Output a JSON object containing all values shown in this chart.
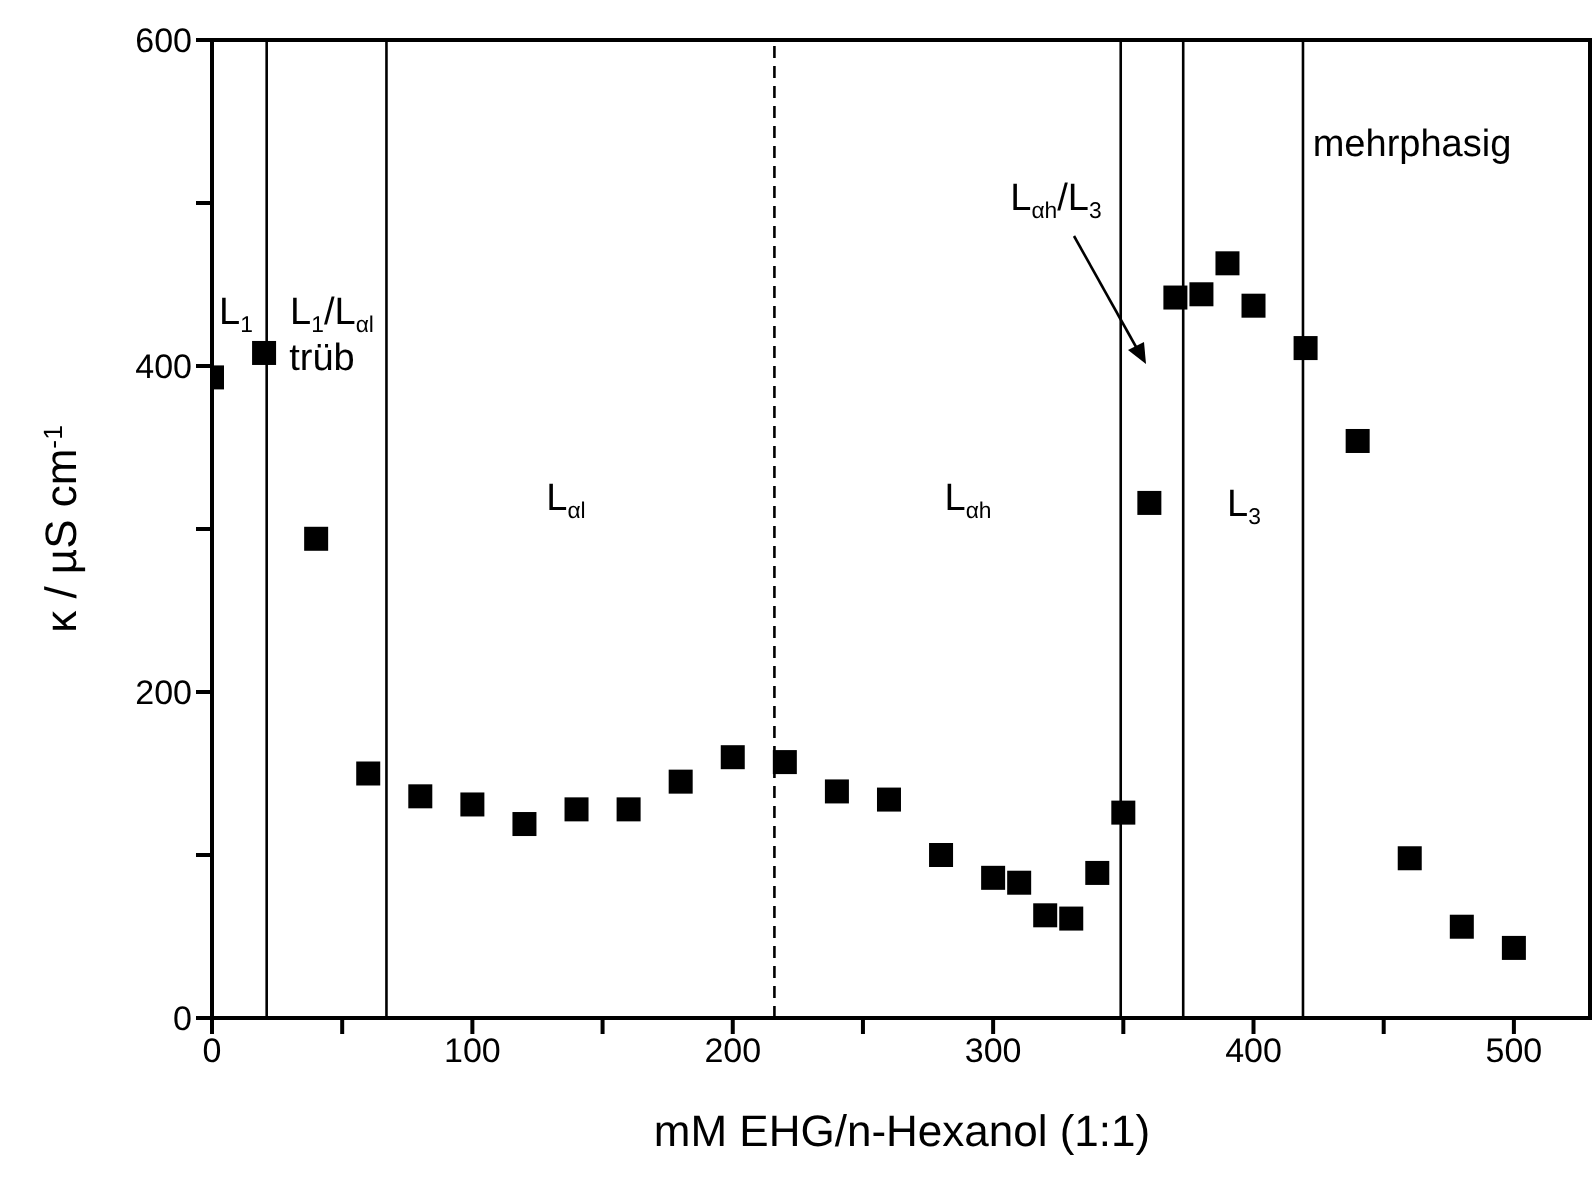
{
  "chart_data": {
    "type": "scatter",
    "xlabel": "mM EHG/n-Hexanol (1:1)",
    "ylabel": "κ / µS cm$^{-1}$",
    "x": [
      0,
      20,
      40,
      60,
      80,
      100,
      120,
      140,
      160,
      180,
      200,
      220,
      240,
      260,
      280,
      300,
      310,
      320,
      330,
      340,
      350,
      360,
      370,
      380,
      390,
      400,
      420,
      440,
      460,
      480,
      500
    ],
    "series": [
      {
        "color": "#000000",
        "values": [
          393,
          408,
          294,
          150,
          136,
          131,
          119,
          128,
          128,
          145,
          160,
          157,
          139,
          134,
          100,
          86,
          83,
          63,
          61,
          89,
          126,
          316,
          442,
          444,
          463,
          437,
          411,
          354,
          98,
          56,
          43
        ]
      }
    ],
    "marker": "square",
    "xlim": [
      0,
      530
    ],
    "xticks": [
      0,
      {
        "value": 50,
        "label": null
      },
      100,
      {
        "value": 150,
        "label": null
      },
      200,
      {
        "value": 250,
        "label": null
      },
      300,
      {
        "value": 350,
        "label": null
      },
      400,
      {
        "value": 450,
        "label": null
      },
      500
    ],
    "ylim": [
      0,
      600
    ],
    "yticks": [
      0,
      {
        "value": 100,
        "label": null
      },
      200,
      {
        "value": 300,
        "label": null
      },
      400,
      {
        "value": 500,
        "label": null
      },
      600
    ],
    "ref_lines": [
      {
        "axis": "x",
        "value": 21,
        "line_style": "solid"
      },
      {
        "axis": "x",
        "value": 67,
        "line_style": "solid"
      },
      {
        "axis": "x",
        "value": 216,
        "line_style": "dashed"
      },
      {
        "axis": "x",
        "value": 349,
        "line_style": "solid"
      },
      {
        "axis": "x",
        "value": 373,
        "line_style": "solid"
      },
      {
        "axis": "x",
        "value": 419,
        "line_style": "solid"
      }
    ],
    "annotations": [
      "L$_{1}$",
      "L$_{1}$/L$_{αl}$",
      "trüb",
      "L$_{αl}$",
      "L$_{αh}$",
      "L$_{αh}$/L$_{3}$",
      "L$_{3}$",
      "mehrphasig"
    ]
  }
}
